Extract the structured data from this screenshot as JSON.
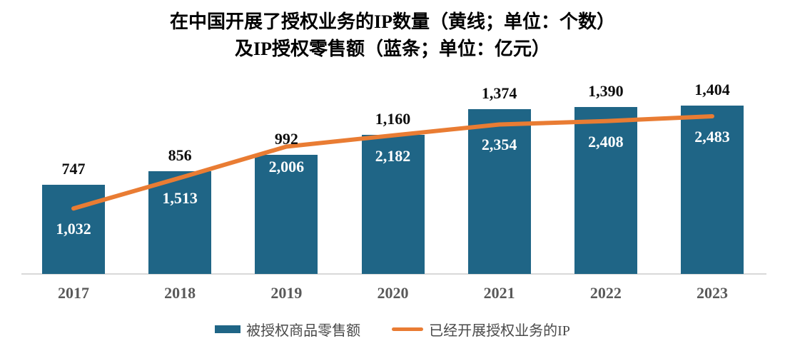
{
  "title": {
    "line1": "在中国开展了授权业务的IP数量（黄线；单位：个数）",
    "line2": "及IP授权零售额（蓝条；单位：亿元）"
  },
  "chart_data": {
    "type": "combo-bar-line",
    "categories": [
      "2017",
      "2018",
      "2019",
      "2020",
      "2021",
      "2022",
      "2023"
    ],
    "series": [
      {
        "name": "被授权商品零售额",
        "type": "bar",
        "unit": "亿元",
        "color": "#1F6586",
        "values": [
          1032,
          1513,
          2006,
          2182,
          2354,
          2408,
          2483
        ],
        "labels": [
          "1,032",
          "1,513",
          "2,006",
          "2,182",
          "2,354",
          "2,408",
          "2,483"
        ],
        "label_position": "inside-below-line",
        "label_color": "#ffffff"
      },
      {
        "name": "已经开展授权业务的IP",
        "type": "line",
        "unit": "个数",
        "color": "#E97C33",
        "values": [
          747,
          856,
          992,
          1160,
          1374,
          1390,
          1404
        ],
        "labels": [
          "747",
          "856",
          "992",
          "1,160",
          "1,374",
          "1,390",
          "1,404"
        ],
        "label_position": "above-bar",
        "label_color": "#0D0D0D"
      }
    ],
    "legend_position": "bottom",
    "axis": {
      "x_label_color": "#595959",
      "baseline_color": "#D9D9D9"
    }
  }
}
